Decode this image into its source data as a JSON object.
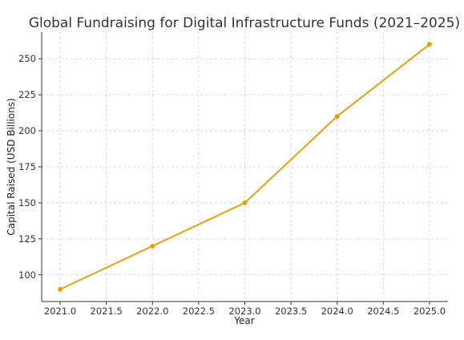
{
  "chart_data": {
    "type": "line",
    "title": "Global Fundraising for Digital Infrastructure Funds (2021–2025)",
    "xlabel": "Year",
    "ylabel": "Capital Raised (USD Billions)",
    "x": [
      2021,
      2022,
      2023,
      2024,
      2025
    ],
    "series": [
      {
        "values": [
          90,
          120,
          150,
          210,
          260
        ],
        "color": "#e5a00d"
      }
    ],
    "xlim": [
      2020.8,
      2025.2
    ],
    "ylim": [
      81.5,
      268.5
    ],
    "xticks": [
      2021.0,
      2021.5,
      2022.0,
      2022.5,
      2023.0,
      2023.5,
      2024.0,
      2024.5,
      2025.0
    ],
    "xtick_labels": [
      "2021.0",
      "2021.5",
      "2022.0",
      "2022.5",
      "2023.0",
      "2023.5",
      "2024.0",
      "2024.5",
      "2025.0"
    ],
    "yticks": [
      100,
      125,
      150,
      175,
      200,
      225,
      250
    ],
    "ytick_labels": [
      "100",
      "125",
      "150",
      "175",
      "200",
      "225",
      "250"
    ],
    "grid": true,
    "legend": false
  }
}
